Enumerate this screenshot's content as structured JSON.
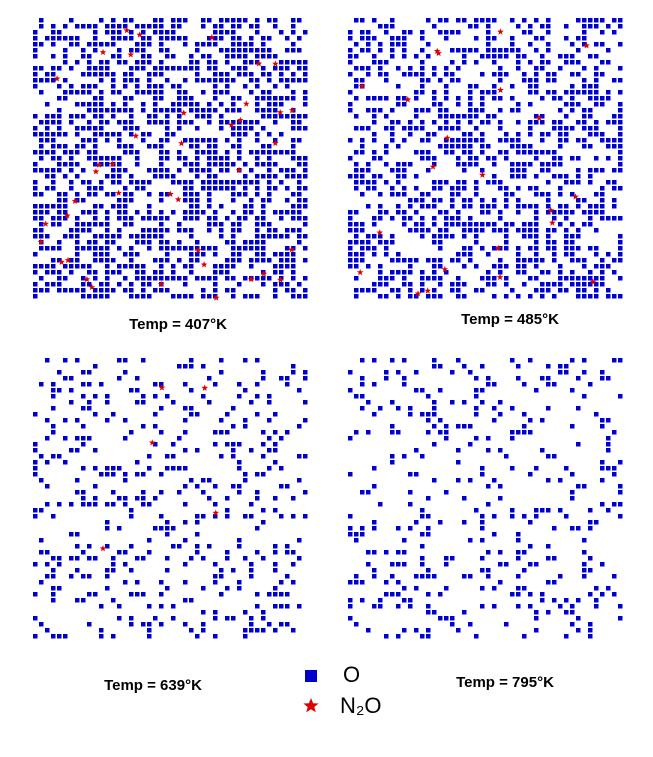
{
  "panels": [
    {
      "caption": "Temp = 407°K"
    },
    {
      "caption": "Temp = 485°K"
    },
    {
      "caption": "Temp = 639°K"
    },
    {
      "caption": "Temp = 795°K"
    }
  ],
  "legend": {
    "items": [
      {
        "label": "O"
      },
      {
        "label": "N₂O"
      }
    ]
  }
}
